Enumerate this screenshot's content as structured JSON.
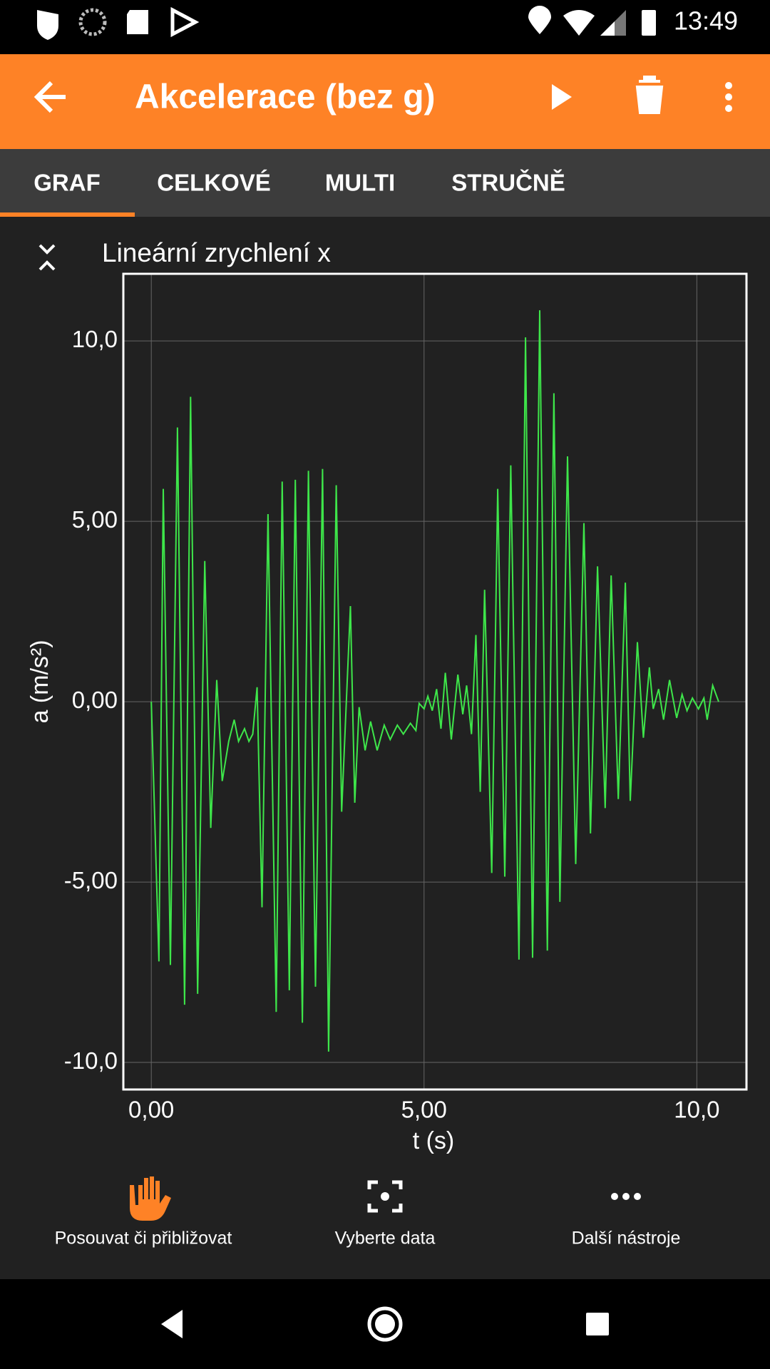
{
  "status_bar": {
    "time": "13:49"
  },
  "app_bar": {
    "title": "Akcelerace (bez g)"
  },
  "tabs": [
    "GRAF",
    "CELKOVÉ",
    "MULTI",
    "STRUČNĚ"
  ],
  "chart_data": {
    "type": "line",
    "title": "Lineární zrychlení x",
    "x_label": "t (s)",
    "y_label": "a (m/s²)",
    "color": "#3ee64a",
    "grid": true,
    "xlim": [
      -0.512,
      10.91
    ],
    "ylim": [
      -10.75,
      11.86
    ],
    "xticks": [
      {
        "value": 0,
        "label": "0,00"
      },
      {
        "value": 5,
        "label": "5,00"
      },
      {
        "value": 10,
        "label": "10,0"
      }
    ],
    "yticks": [
      {
        "value": -10,
        "label": "-10,0"
      },
      {
        "value": -5,
        "label": "-5,00"
      },
      {
        "value": 0,
        "label": "0,00"
      },
      {
        "value": 5,
        "label": "5,00"
      },
      {
        "value": 10,
        "label": "10,0"
      }
    ],
    "x": [
      0,
      0.14,
      0.22,
      0.35,
      0.48,
      0.61,
      0.72,
      0.85,
      0.98,
      1.09,
      1.2,
      1.3,
      1.42,
      1.52,
      1.6,
      1.71,
      1.79,
      1.86,
      1.94,
      2.03,
      2.14,
      2.29,
      2.4,
      2.53,
      2.64,
      2.77,
      2.88,
      3.01,
      3.14,
      3.25,
      3.39,
      3.49,
      3.65,
      3.73,
      3.81,
      3.92,
      4.02,
      4.14,
      4.27,
      4.38,
      4.51,
      4.62,
      4.75,
      4.85,
      4.91,
      5.0,
      5.07,
      5.15,
      5.23,
      5.31,
      5.39,
      5.5,
      5.62,
      5.71,
      5.78,
      5.87,
      5.95,
      6.03,
      6.11,
      6.24,
      6.35,
      6.48,
      6.59,
      6.74,
      6.86,
      6.99,
      7.12,
      7.26,
      7.38,
      7.49,
      7.63,
      7.78,
      7.93,
      8.05,
      8.18,
      8.32,
      8.43,
      8.56,
      8.69,
      8.78,
      8.91,
      9.02,
      9.13,
      9.2,
      9.3,
      9.39,
      9.5,
      9.63,
      9.73,
      9.82,
      9.92,
      10.03,
      10.13,
      10.19,
      10.29,
      10.4
    ],
    "values": [
      0,
      -7.2,
      5.9,
      -7.3,
      7.6,
      -8.4,
      8.45,
      -8.1,
      3.9,
      -3.5,
      0.6,
      -2.2,
      -1.1,
      -0.5,
      -1.1,
      -0.75,
      -1.1,
      -0.9,
      0.4,
      -5.7,
      5.2,
      -8.6,
      6.1,
      -8.0,
      6.15,
      -8.9,
      6.4,
      -7.9,
      6.45,
      -9.7,
      6.0,
      -3.05,
      2.65,
      -2.8,
      -0.15,
      -1.35,
      -0.55,
      -1.35,
      -0.65,
      -1.05,
      -0.65,
      -0.9,
      -0.6,
      -0.8,
      -0.05,
      -0.2,
      0.15,
      -0.25,
      0.35,
      -0.75,
      0.8,
      -1.05,
      0.75,
      -0.35,
      0.45,
      -0.9,
      1.85,
      -2.5,
      3.1,
      -4.75,
      5.9,
      -4.85,
      6.55,
      -7.15,
      10.1,
      -7.1,
      10.85,
      -6.9,
      8.55,
      -5.55,
      6.8,
      -4.5,
      4.95,
      -3.65,
      3.75,
      -2.95,
      3.5,
      -2.7,
      3.3,
      -2.75,
      1.65,
      -1.0,
      0.95,
      -0.2,
      0.35,
      -0.5,
      0.6,
      -0.45,
      0.2,
      -0.25,
      0.1,
      -0.2,
      0.1,
      -0.5,
      0.45,
      0.0
    ]
  },
  "toolbar": [
    "Posouvat či přibližovat",
    "Vyberte data",
    "Další nástroje"
  ]
}
